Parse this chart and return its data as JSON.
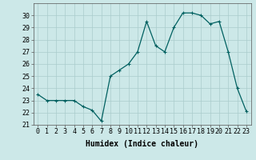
{
  "x": [
    0,
    1,
    2,
    3,
    4,
    5,
    6,
    7,
    8,
    9,
    10,
    11,
    12,
    13,
    14,
    15,
    16,
    17,
    18,
    19,
    20,
    21,
    22,
    23
  ],
  "y": [
    23.5,
    23.0,
    23.0,
    23.0,
    23.0,
    22.5,
    22.2,
    21.3,
    25.0,
    25.5,
    26.0,
    27.0,
    29.5,
    27.5,
    27.0,
    29.0,
    30.2,
    30.2,
    30.0,
    29.3,
    29.5,
    27.0,
    24.0,
    22.1
  ],
  "line_color": "#006060",
  "marker": "+",
  "marker_size": 3,
  "marker_lw": 0.8,
  "line_width": 0.9,
  "bg_color": "#cce8e8",
  "grid_color": "#aacccc",
  "xlabel": "Humidex (Indice chaleur)",
  "ylim": [
    21,
    31
  ],
  "xlim": [
    -0.5,
    23.5
  ],
  "yticks": [
    21,
    22,
    23,
    24,
    25,
    26,
    27,
    28,
    29,
    30
  ],
  "xticks": [
    0,
    1,
    2,
    3,
    4,
    5,
    6,
    7,
    8,
    9,
    10,
    11,
    12,
    13,
    14,
    15,
    16,
    17,
    18,
    19,
    20,
    21,
    22,
    23
  ],
  "xlabel_fontsize": 7,
  "tick_fontsize": 6
}
